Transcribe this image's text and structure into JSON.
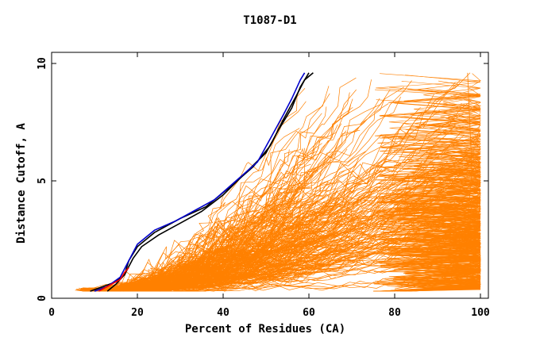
{
  "chart_data": {
    "type": "line",
    "title": "T1087-D1",
    "xlabel": "Percent of Residues (CA)",
    "ylabel": "Distance Cutoff, A",
    "xlim": [
      0,
      100
    ],
    "ylim": [
      0,
      10
    ],
    "x_ticks": [
      "0",
      "20",
      "40",
      "60",
      "80",
      "100"
    ],
    "y_ticks": [
      "0",
      "5",
      "10"
    ],
    "grid": false,
    "legend": "none",
    "colors": {
      "background_curves": "#ff8000",
      "highlight_black": "#000000",
      "highlight_blue": "#0000cc",
      "highlight_red": "#ff0000",
      "frame": "#000000"
    },
    "highlight_series": [
      {
        "color": "#000000",
        "points": [
          [
            9,
            0.3
          ],
          [
            12,
            0.5
          ],
          [
            15,
            0.7
          ],
          [
            17,
            1.0
          ],
          [
            19,
            1.7
          ],
          [
            21,
            2.2
          ],
          [
            25,
            2.7
          ],
          [
            30,
            3.2
          ],
          [
            35,
            3.7
          ],
          [
            40,
            4.4
          ],
          [
            45,
            5.3
          ],
          [
            50,
            6.2
          ],
          [
            53,
            7.2
          ],
          [
            56,
            8.1
          ],
          [
            58,
            9.0
          ],
          [
            60,
            9.6
          ]
        ]
      },
      {
        "color": "#000000",
        "points": [
          [
            13,
            0.3
          ],
          [
            15,
            0.6
          ],
          [
            17,
            1.0
          ],
          [
            18,
            1.6
          ],
          [
            20,
            2.2
          ],
          [
            24,
            2.8
          ],
          [
            30,
            3.4
          ],
          [
            36,
            3.9
          ],
          [
            42,
            4.8
          ],
          [
            47,
            5.6
          ],
          [
            51,
            6.5
          ],
          [
            54,
            7.6
          ],
          [
            57,
            8.6
          ],
          [
            59,
            9.3
          ],
          [
            61,
            9.6
          ]
        ]
      },
      {
        "color": "#0000cc",
        "points": [
          [
            10,
            0.3
          ],
          [
            13,
            0.5
          ],
          [
            16,
            0.9
          ],
          [
            18,
            1.6
          ],
          [
            20,
            2.3
          ],
          [
            24,
            2.9
          ],
          [
            29,
            3.3
          ],
          [
            34,
            3.8
          ],
          [
            38,
            4.2
          ],
          [
            43,
            5.0
          ],
          [
            48,
            5.8
          ],
          [
            51,
            6.8
          ],
          [
            54,
            7.8
          ],
          [
            56,
            8.5
          ],
          [
            58,
            9.3
          ],
          [
            59,
            9.6
          ]
        ]
      },
      {
        "color": "#ff0000",
        "points": [
          [
            11,
            0.3
          ],
          [
            13,
            0.5
          ],
          [
            16,
            0.8
          ],
          [
            17,
            1.1
          ],
          [
            18,
            1.3
          ]
        ]
      }
    ],
    "background_curve_count": 280
  }
}
